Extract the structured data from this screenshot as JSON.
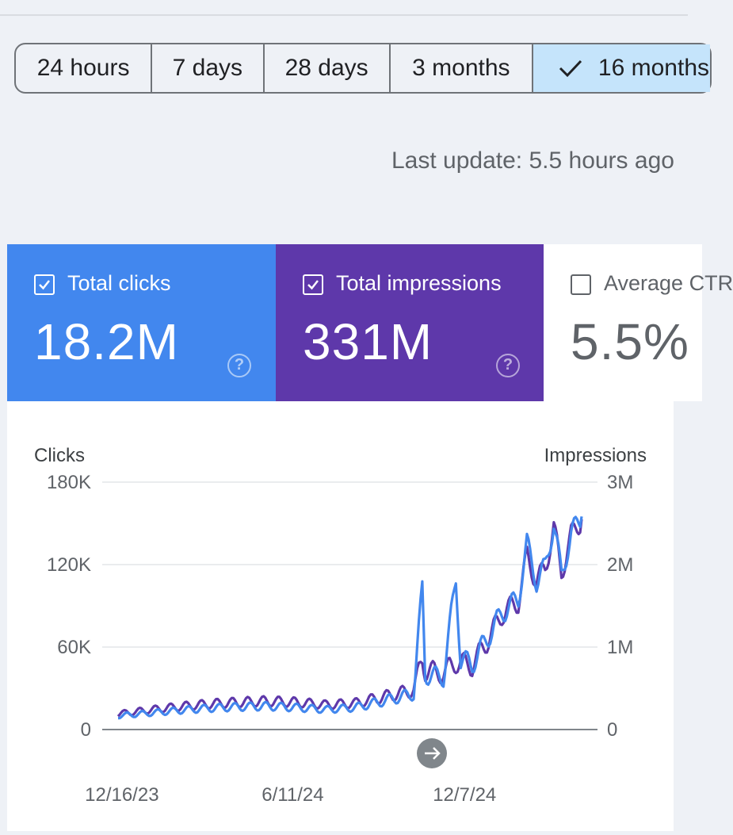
{
  "date_range": {
    "options": [
      {
        "label": "24 hours",
        "selected": false
      },
      {
        "label": "7 days",
        "selected": false
      },
      {
        "label": "28 days",
        "selected": false
      },
      {
        "label": "3 months",
        "selected": false
      },
      {
        "label": "16 months",
        "selected": true
      }
    ]
  },
  "last_update": "Last update: 5.5 hours ago",
  "metrics": {
    "clicks": {
      "label": "Total clicks",
      "value": "18.2M",
      "checked": true,
      "color": "#4287ee"
    },
    "impressions": {
      "label": "Total impressions",
      "value": "331M",
      "checked": true,
      "color": "#5e38aa"
    },
    "ctr": {
      "label": "Average CTR",
      "value": "5.5%",
      "checked": false
    }
  },
  "icons": {
    "checkmark": "check-icon",
    "help": "help-circle-icon",
    "next": "arrow-right-icon"
  },
  "chart_data": {
    "type": "line",
    "y_left_label": "Clicks",
    "y_right_label": "Impressions",
    "y_left_ticks": [
      "180K",
      "120K",
      "60K",
      "0"
    ],
    "y_right_ticks": [
      "3M",
      "2M",
      "1M",
      "0"
    ],
    "ylim_left": [
      0,
      180000
    ],
    "ylim_right": [
      0,
      3000000
    ],
    "x_ticks": [
      "12/16/23",
      "6/11/24",
      "12/7/24"
    ],
    "x_range": [
      "2023-12-12",
      "2025-04-08"
    ],
    "grid": true,
    "legend": "none",
    "series": [
      {
        "name": "Clicks",
        "axis": "left",
        "color": "#4287ee",
        "points": [
          [
            "2023-12-12",
            10000
          ],
          [
            "2024-01-15",
            12000
          ],
          [
            "2024-02-15",
            14000
          ],
          [
            "2024-03-15",
            15500
          ],
          [
            "2024-04-15",
            16500
          ],
          [
            "2024-05-15",
            17000
          ],
          [
            "2024-06-15",
            16000
          ],
          [
            "2024-07-15",
            14500
          ],
          [
            "2024-08-15",
            16000
          ],
          [
            "2024-09-15",
            21000
          ],
          [
            "2024-10-15",
            26000
          ],
          [
            "2024-10-24",
            103000
          ],
          [
            "2024-10-27",
            40000
          ],
          [
            "2024-11-15",
            38000
          ],
          [
            "2024-11-28",
            110000
          ],
          [
            "2024-12-03",
            50000
          ],
          [
            "2024-12-15",
            48000
          ],
          [
            "2025-01-01",
            68000
          ],
          [
            "2025-01-15",
            85000
          ],
          [
            "2025-02-01",
            95000
          ],
          [
            "2025-02-10",
            135000
          ],
          [
            "2025-02-20",
            108000
          ],
          [
            "2025-03-01",
            118000
          ],
          [
            "2025-03-10",
            150000
          ],
          [
            "2025-03-18",
            112000
          ],
          [
            "2025-03-28",
            142000
          ],
          [
            "2025-04-08",
            155000
          ]
        ]
      },
      {
        "name": "Impressions",
        "axis": "right",
        "color": "#5e38aa",
        "points": [
          [
            "2023-12-12",
            190000
          ],
          [
            "2024-01-15",
            240000
          ],
          [
            "2024-02-15",
            280000
          ],
          [
            "2024-03-15",
            310000
          ],
          [
            "2024-04-15",
            330000
          ],
          [
            "2024-05-15",
            345000
          ],
          [
            "2024-06-15",
            330000
          ],
          [
            "2024-07-15",
            300000
          ],
          [
            "2024-08-15",
            320000
          ],
          [
            "2024-09-15",
            400000
          ],
          [
            "2024-10-15",
            480000
          ],
          [
            "2024-10-24",
            850000
          ],
          [
            "2024-10-27",
            720000
          ],
          [
            "2024-11-15",
            680000
          ],
          [
            "2024-11-28",
            820000
          ],
          [
            "2024-12-03",
            800000
          ],
          [
            "2024-12-15",
            780000
          ],
          [
            "2025-01-01",
            1100000
          ],
          [
            "2025-01-15",
            1400000
          ],
          [
            "2025-02-01",
            1550000
          ],
          [
            "2025-02-10",
            2100000
          ],
          [
            "2025-02-20",
            1800000
          ],
          [
            "2025-03-01",
            1950000
          ],
          [
            "2025-03-10",
            2450000
          ],
          [
            "2025-03-18",
            1900000
          ],
          [
            "2025-03-28",
            2350000
          ],
          [
            "2025-04-08",
            2550000
          ]
        ]
      }
    ]
  }
}
